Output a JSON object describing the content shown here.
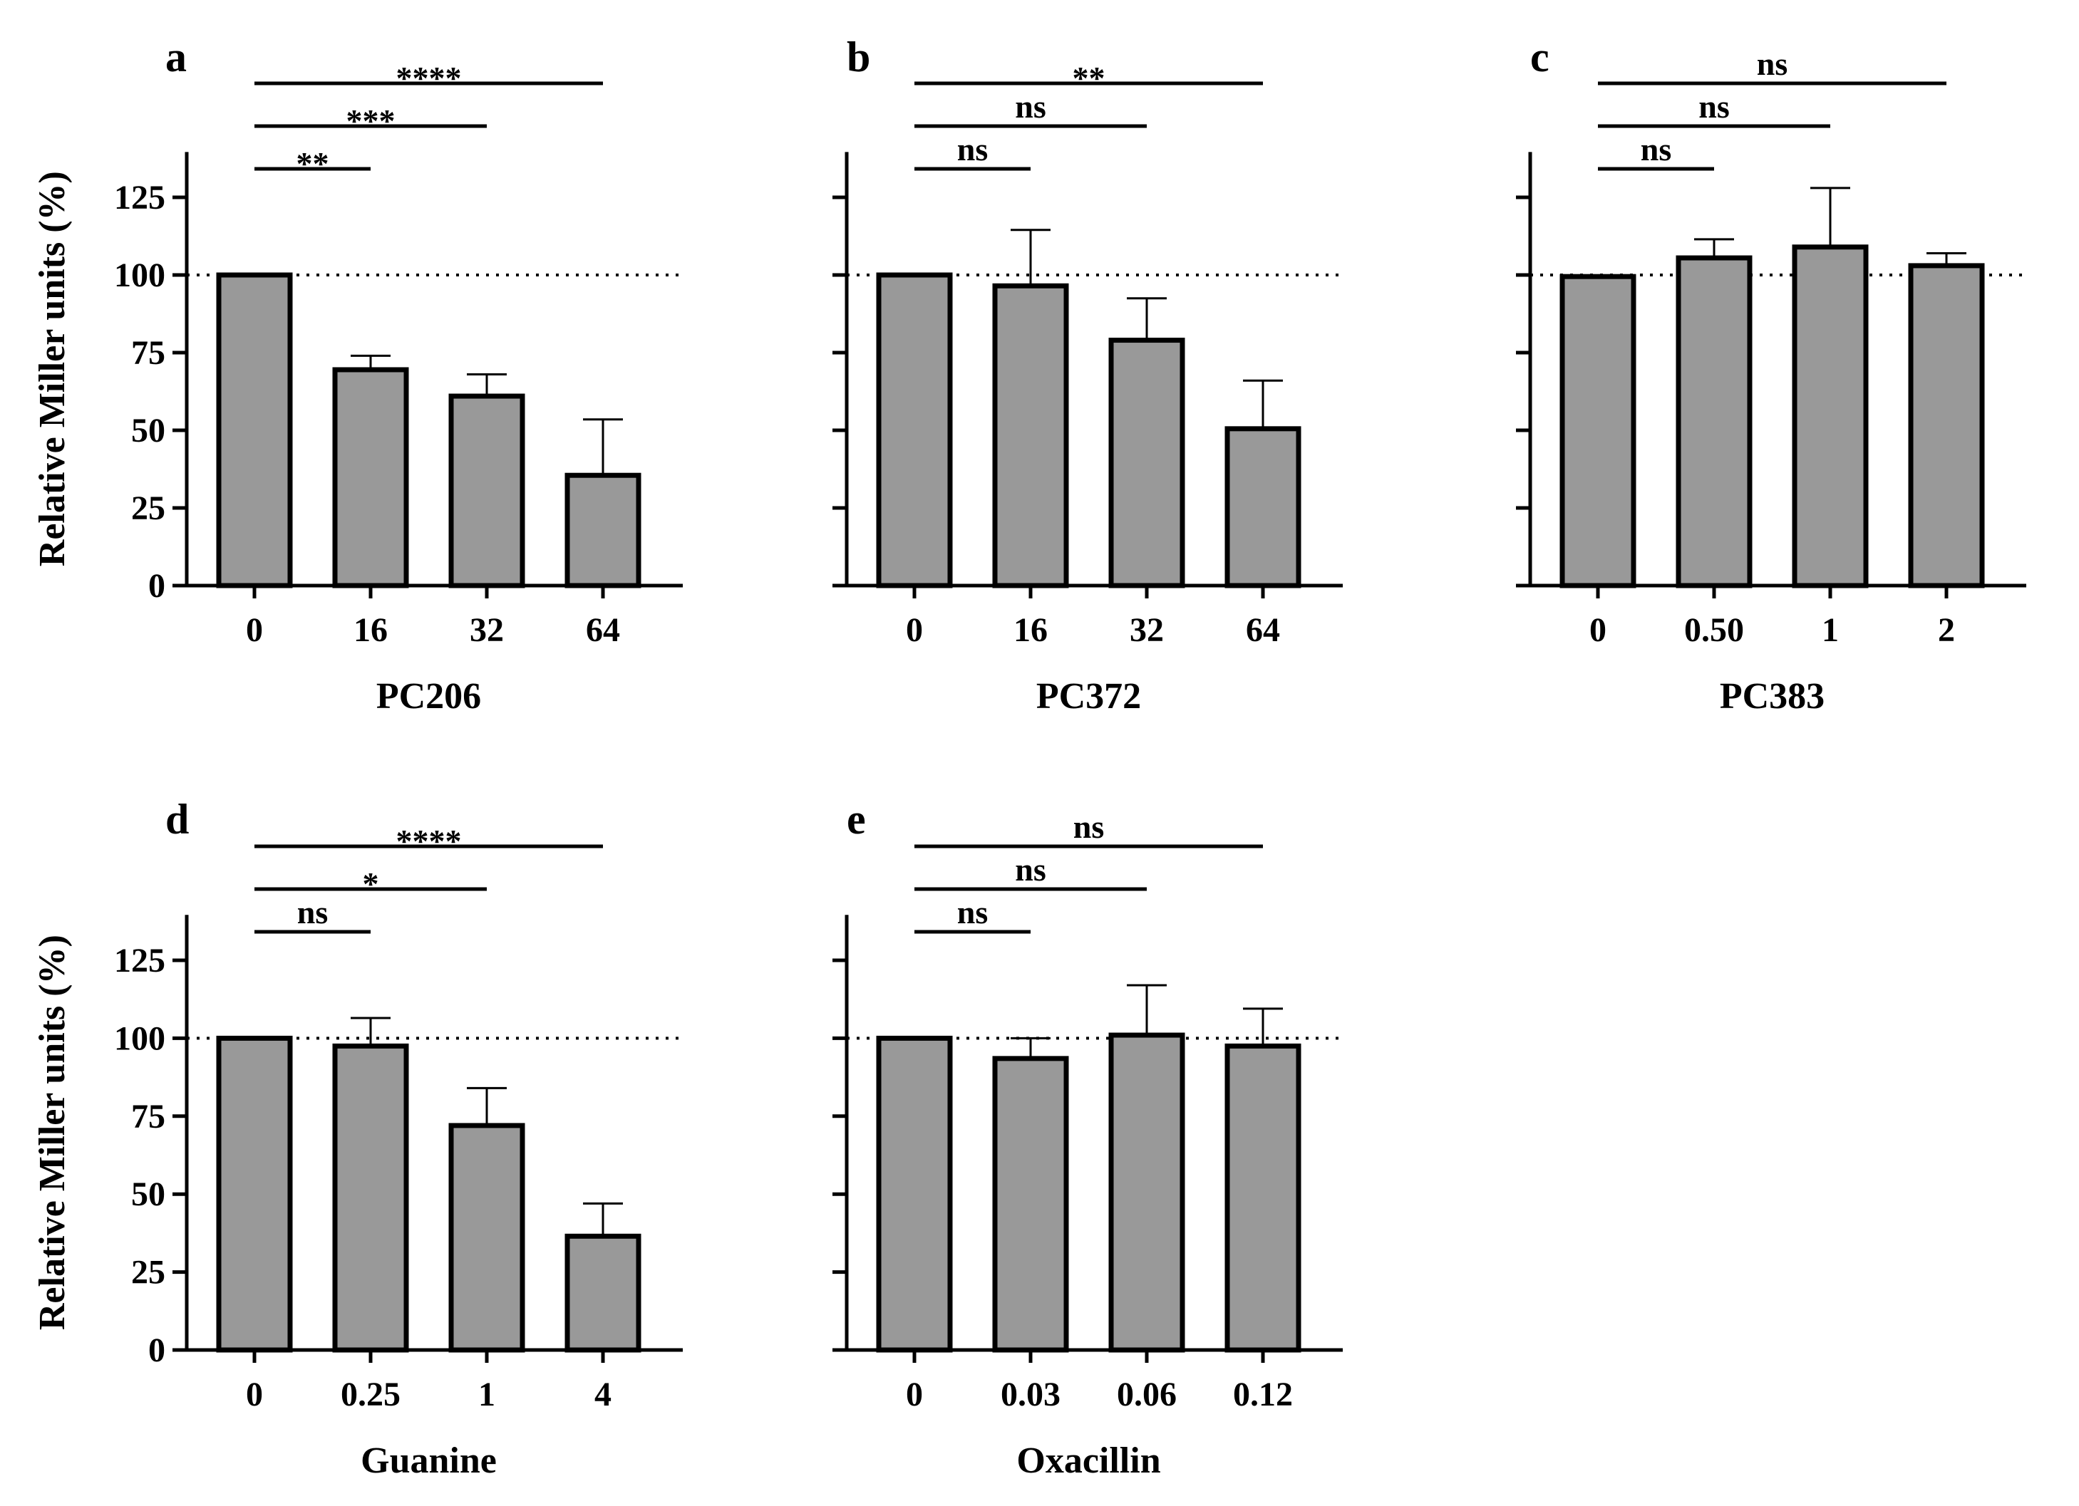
{
  "figure": {
    "ylabel": "Relative Miller units (%)",
    "reference_line": 100,
    "yticks": [
      0,
      25,
      50,
      75,
      100,
      125
    ],
    "ytick_labels": [
      "0",
      "25",
      "50",
      "75",
      "100",
      "125"
    ],
    "bar_color": "#999999",
    "axis_color": "#000000"
  },
  "chart_data": [
    {
      "panel": "a",
      "type": "bar",
      "xlabel": "PC206",
      "categories": [
        "0",
        "16",
        "32",
        "64"
      ],
      "values": [
        100,
        69.5,
        61,
        35.5
      ],
      "errors": [
        0,
        4.5,
        7,
        18
      ],
      "ylim": [
        0,
        135
      ],
      "show_ytick_labels": true,
      "significance": [
        {
          "from": 0,
          "to": 1,
          "label": "**"
        },
        {
          "from": 0,
          "to": 2,
          "label": "***"
        },
        {
          "from": 0,
          "to": 3,
          "label": "****"
        }
      ]
    },
    {
      "panel": "b",
      "type": "bar",
      "xlabel": "PC372",
      "categories": [
        "0",
        "16",
        "32",
        "64"
      ],
      "values": [
        100,
        96.5,
        79,
        50.5
      ],
      "errors": [
        0,
        18,
        13.5,
        15.5
      ],
      "ylim": [
        0,
        135
      ],
      "show_ytick_labels": false,
      "significance": [
        {
          "from": 0,
          "to": 1,
          "label": "ns"
        },
        {
          "from": 0,
          "to": 2,
          "label": "ns"
        },
        {
          "from": 0,
          "to": 3,
          "label": "**"
        }
      ]
    },
    {
      "panel": "c",
      "type": "bar",
      "xlabel": "PC383",
      "categories": [
        "0",
        "0.50",
        "1",
        "2"
      ],
      "values": [
        99.5,
        105.5,
        109,
        103
      ],
      "errors": [
        0,
        6,
        19,
        4
      ],
      "ylim": [
        0,
        135
      ],
      "show_ytick_labels": false,
      "significance": [
        {
          "from": 0,
          "to": 1,
          "label": "ns"
        },
        {
          "from": 0,
          "to": 2,
          "label": "ns"
        },
        {
          "from": 0,
          "to": 3,
          "label": "ns"
        }
      ]
    },
    {
      "panel": "d",
      "type": "bar",
      "xlabel": "Guanine",
      "categories": [
        "0",
        "0.25",
        "1",
        "4"
      ],
      "values": [
        100,
        97.5,
        72,
        36.5
      ],
      "errors": [
        0,
        9,
        12,
        10.5
      ],
      "ylim": [
        0,
        135
      ],
      "show_ytick_labels": true,
      "significance": [
        {
          "from": 0,
          "to": 1,
          "label": "ns"
        },
        {
          "from": 0,
          "to": 2,
          "label": "*"
        },
        {
          "from": 0,
          "to": 3,
          "label": "****"
        }
      ]
    },
    {
      "panel": "e",
      "type": "bar",
      "xlabel": "Oxacillin",
      "categories": [
        "0",
        "0.03",
        "0.06",
        "0.12"
      ],
      "values": [
        100,
        93.5,
        101,
        97.5
      ],
      "errors": [
        0,
        6.5,
        16,
        12
      ],
      "ylim": [
        0,
        135
      ],
      "show_ytick_labels": false,
      "significance": [
        {
          "from": 0,
          "to": 1,
          "label": "ns"
        },
        {
          "from": 0,
          "to": 2,
          "label": "ns"
        },
        {
          "from": 0,
          "to": 3,
          "label": "ns"
        }
      ]
    }
  ]
}
